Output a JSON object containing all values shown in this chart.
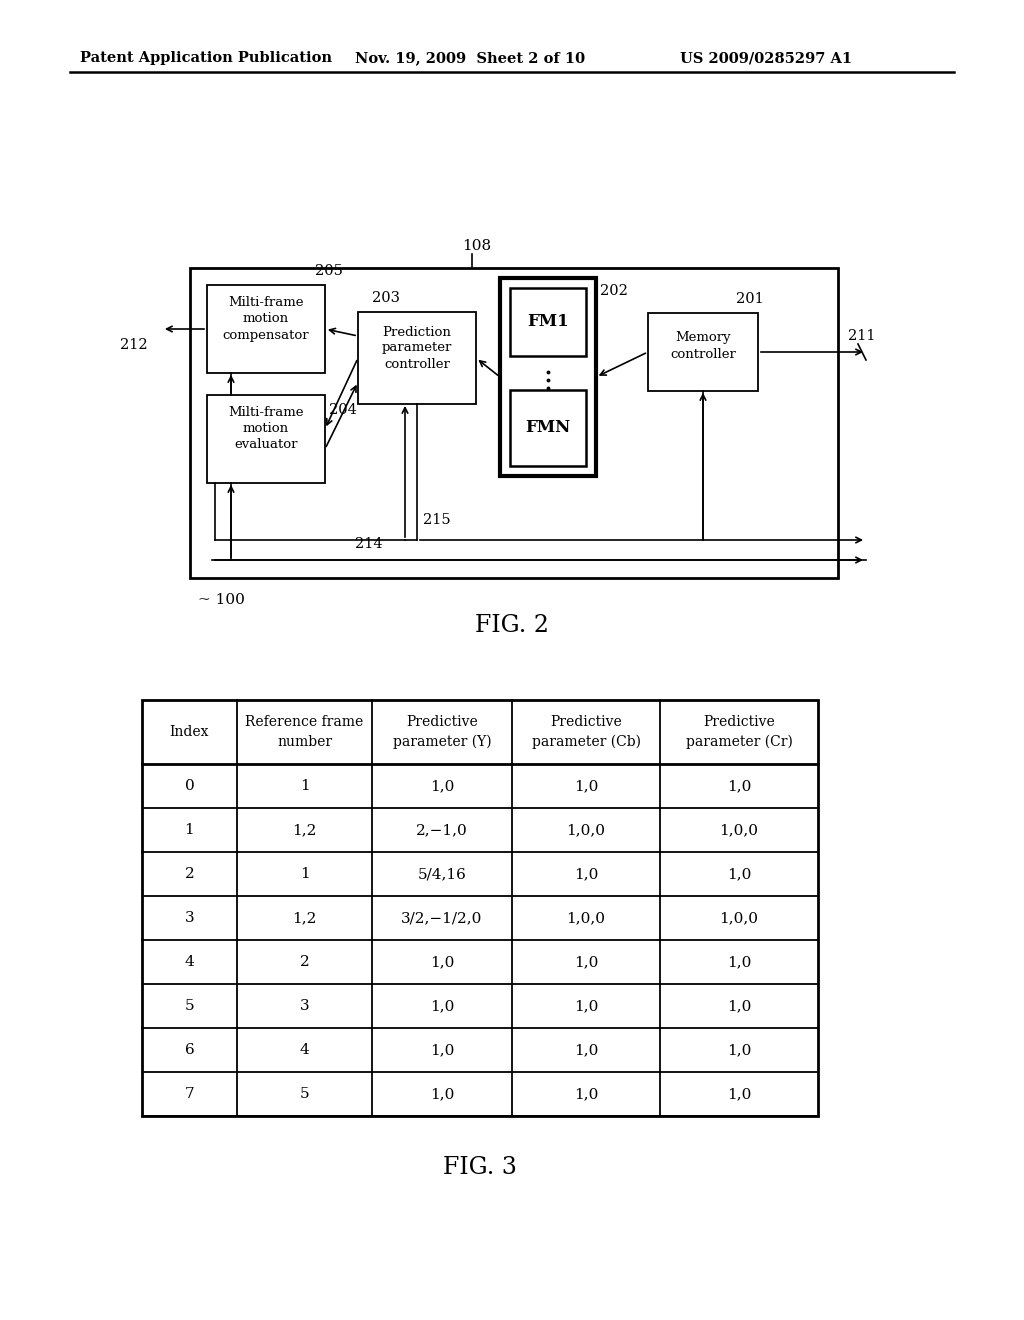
{
  "bg_color": "#ffffff",
  "header_text": "Patent Application Publication",
  "header_date": "Nov. 19, 2009  Sheet 2 of 10",
  "header_patent": "US 2009/0285297 A1",
  "fig2_label": "FIG. 2",
  "fig3_label": "FIG. 3",
  "label_108": "108",
  "label_100": "100",
  "label_205": "205",
  "label_203": "203",
  "label_202": "202",
  "label_201": "201",
  "label_212": "212",
  "label_211": "211",
  "label_204": "204",
  "label_215": "215",
  "label_214": "214",
  "box_compensator_text": [
    "Milti-frame",
    "motion",
    "compensator"
  ],
  "box_evaluator_text": [
    "Milti-frame",
    "motion",
    "evaluator"
  ],
  "box_prediction_text": [
    "Prediction",
    "parameter",
    "controller"
  ],
  "box_memory_text": [
    "Memory",
    "controller"
  ],
  "box_fm1_text": "FM1",
  "box_fmn_text": "FMN",
  "table_headers": [
    "Index",
    "Reference frame\nnumber",
    "Predictive\nparameter (Y)",
    "Predictive\nparameter (Cb)",
    "Predictive\nparameter (Cr)"
  ],
  "table_rows": [
    [
      "0",
      "1",
      "1,0",
      "1,0",
      "1,0"
    ],
    [
      "1",
      "1,2",
      "2,−1,0",
      "1,0,0",
      "1,0,0"
    ],
    [
      "2",
      "1",
      "5/4,16",
      "1,0",
      "1,0"
    ],
    [
      "3",
      "1,2",
      "3/2,−1/2,0",
      "1,0,0",
      "1,0,0"
    ],
    [
      "4",
      "2",
      "1,0",
      "1,0",
      "1,0"
    ],
    [
      "5",
      "3",
      "1,0",
      "1,0",
      "1,0"
    ],
    [
      "6",
      "4",
      "1,0",
      "1,0",
      "1,0"
    ],
    [
      "7",
      "5",
      "1,0",
      "1,0",
      "1,0"
    ]
  ]
}
